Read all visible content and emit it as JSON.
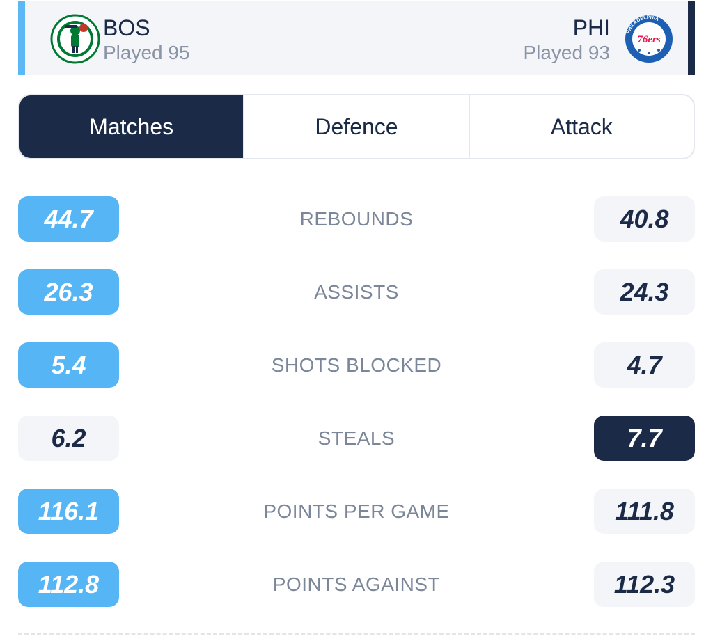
{
  "colors": {
    "home_accent": "#56b6f5",
    "away_accent": "#1b2a47",
    "neutral_bg": "#f3f5f8",
    "label": "#7b8699"
  },
  "home": {
    "abbr": "BOS",
    "played": "Played 95",
    "logo_icon": "celtics-logo-icon"
  },
  "away": {
    "abbr": "PHI",
    "played": "Played 93",
    "logo_icon": "76ers-logo-icon",
    "logo_text": "76ers",
    "logo_ring_text": "PHILADELPHIA"
  },
  "tabs": [
    {
      "label": "Matches",
      "active": true
    },
    {
      "label": "Defence",
      "active": false
    },
    {
      "label": "Attack",
      "active": false
    }
  ],
  "stats": [
    {
      "label": "REBOUNDS",
      "home": "44.7",
      "away": "40.8",
      "leader": "home"
    },
    {
      "label": "ASSISTS",
      "home": "26.3",
      "away": "24.3",
      "leader": "home"
    },
    {
      "label": "SHOTS BLOCKED",
      "home": "5.4",
      "away": "4.7",
      "leader": "home"
    },
    {
      "label": "STEALS",
      "home": "6.2",
      "away": "7.7",
      "leader": "away"
    },
    {
      "label": "POINTS PER GAME",
      "home": "116.1",
      "away": "111.8",
      "leader": "home"
    },
    {
      "label": "POINTS AGAINST",
      "home": "112.8",
      "away": "112.3",
      "leader": "home"
    }
  ]
}
